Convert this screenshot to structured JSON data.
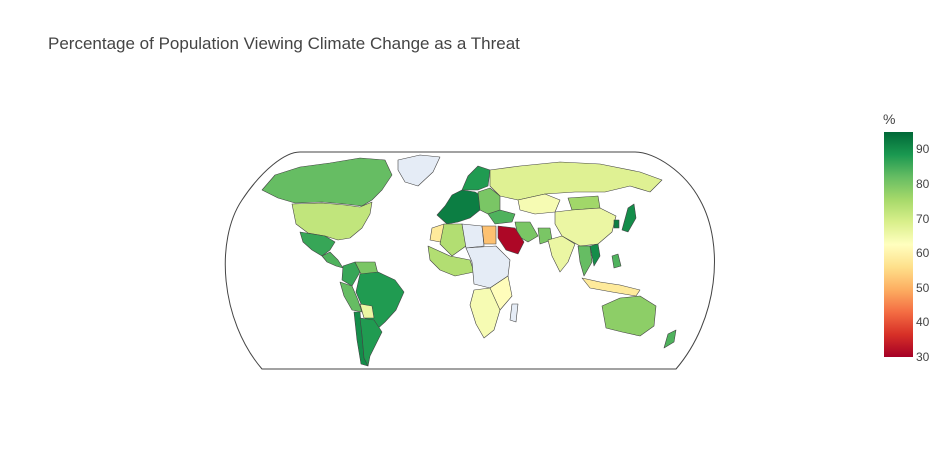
{
  "title": "Percentage of Population Viewing Climate Change as a Threat",
  "colorbar": {
    "title": "%",
    "min": 30,
    "max": 95,
    "ticks": [
      "90",
      "80",
      "70",
      "60",
      "50",
      "40",
      "30"
    ],
    "tick_values": [
      90,
      80,
      70,
      60,
      50,
      40,
      30
    ],
    "colorscale": "RdYlGn",
    "stops": [
      "#a50026",
      "#d73027",
      "#f46d43",
      "#fdae61",
      "#fee08b",
      "#ffffbf",
      "#d9ef8b",
      "#a6d96a",
      "#66bd63",
      "#1a9850",
      "#006837"
    ]
  },
  "map": {
    "projection": "natural earth",
    "land_no_data_color": "#e5ecf6",
    "border_color": "#444444"
  },
  "chart_data": {
    "type": "choropleth",
    "title": "Percentage of Population Viewing Climate Change as a Threat",
    "colorbar_title": "%",
    "range": [
      30,
      95
    ],
    "regions": [
      {
        "name": "Canada",
        "value": 82
      },
      {
        "name": "United States",
        "value": 72
      },
      {
        "name": "Mexico",
        "value": 86
      },
      {
        "name": "Central America",
        "value": 84
      },
      {
        "name": "Colombia",
        "value": 86
      },
      {
        "name": "Venezuela",
        "value": 80
      },
      {
        "name": "Peru",
        "value": 82
      },
      {
        "name": "Brazil",
        "value": 88
      },
      {
        "name": "Bolivia",
        "value": 66
      },
      {
        "name": "Chile",
        "value": 90
      },
      {
        "name": "Argentina",
        "value": 88
      },
      {
        "name": "Greenland",
        "value": null
      },
      {
        "name": "Western Europe",
        "value": 92
      },
      {
        "name": "Scandinavia",
        "value": 88
      },
      {
        "name": "Eastern Europe",
        "value": 80
      },
      {
        "name": "Russia",
        "value": 68
      },
      {
        "name": "Kazakhstan",
        "value": 64
      },
      {
        "name": "Mongolia",
        "value": 76
      },
      {
        "name": "China",
        "value": 66
      },
      {
        "name": "Morocco",
        "value": 58
      },
      {
        "name": "Algeria",
        "value": 74
      },
      {
        "name": "Libya",
        "value": null
      },
      {
        "name": "Egypt",
        "value": 52
      },
      {
        "name": "Saudi Arabia",
        "value": 31
      },
      {
        "name": "Turkey",
        "value": 84
      },
      {
        "name": "Iran",
        "value": 80
      },
      {
        "name": "India",
        "value": 66
      },
      {
        "name": "Pakistan",
        "value": 80
      },
      {
        "name": "West Africa",
        "value": 74
      },
      {
        "name": "Central Africa",
        "value": null
      },
      {
        "name": "East Africa",
        "value": 62
      },
      {
        "name": "Southern Africa",
        "value": 64
      },
      {
        "name": "Madagascar",
        "value": null
      },
      {
        "name": "Southeast Asia",
        "value": 82
      },
      {
        "name": "Vietnam",
        "value": 90
      },
      {
        "name": "Philippines",
        "value": 84
      },
      {
        "name": "Indonesia",
        "value": 58
      },
      {
        "name": "Japan",
        "value": 90
      },
      {
        "name": "South Korea",
        "value": 92
      },
      {
        "name": "Australia",
        "value": 78
      },
      {
        "name": "New Zealand",
        "value": 84
      }
    ]
  }
}
